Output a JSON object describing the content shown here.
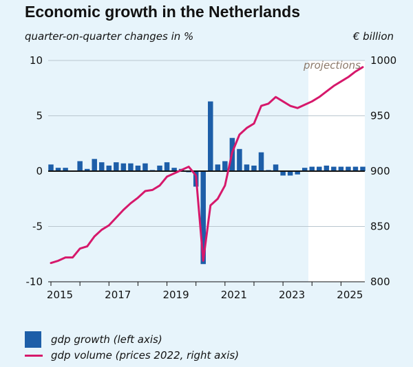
{
  "chart_data": {
    "type": "bar+line",
    "title": "Economic growth in the Netherlands",
    "left_axis_label": "quarter-on-quarter changes in %",
    "right_axis_label": "€ billion",
    "left_ylim": [
      -10,
      10
    ],
    "right_ylim": [
      800,
      1000
    ],
    "left_ticks": [
      "10",
      "5",
      "0",
      "-5",
      "-10"
    ],
    "right_ticks": [
      "1000",
      "950",
      "900",
      "850",
      "800"
    ],
    "x_ticks": [
      "2015",
      "2017",
      "2019",
      "2021",
      "2023",
      "2025"
    ],
    "projection_label": "projections",
    "projection_start": "2024Q1",
    "quarters": [
      "2015Q1",
      "2015Q2",
      "2015Q3",
      "2015Q4",
      "2016Q1",
      "2016Q2",
      "2016Q3",
      "2016Q4",
      "2017Q1",
      "2017Q2",
      "2017Q3",
      "2017Q4",
      "2018Q1",
      "2018Q2",
      "2018Q3",
      "2018Q4",
      "2019Q1",
      "2019Q2",
      "2019Q3",
      "2019Q4",
      "2020Q1",
      "2020Q2",
      "2020Q3",
      "2020Q4",
      "2021Q1",
      "2021Q2",
      "2021Q3",
      "2021Q4",
      "2022Q1",
      "2022Q2",
      "2022Q3",
      "2022Q4",
      "2023Q1",
      "2023Q2",
      "2023Q3",
      "2023Q4",
      "2024Q1",
      "2024Q2",
      "2024Q3",
      "2024Q4",
      "2025Q1",
      "2025Q2",
      "2025Q3",
      "2025Q4"
    ],
    "series": [
      {
        "name": "gdp growth (left axis)",
        "type": "bar",
        "color": "#1d5ea8",
        "values": [
          0.6,
          0.3,
          0.3,
          0.0,
          0.9,
          0.2,
          1.1,
          0.8,
          0.5,
          0.8,
          0.7,
          0.7,
          0.5,
          0.7,
          0.1,
          0.5,
          0.8,
          0.3,
          0.2,
          -0.1,
          -1.4,
          -8.4,
          6.3,
          0.6,
          0.9,
          3.0,
          2.0,
          0.6,
          0.5,
          1.7,
          0.1,
          0.6,
          -0.4,
          -0.4,
          -0.3,
          0.3,
          0.4,
          0.4,
          0.5,
          0.4,
          0.4,
          0.4,
          0.4,
          0.4
        ]
      },
      {
        "name": "gdp volume (prices 2022, right axis)",
        "type": "line",
        "color": "#d6186b",
        "values": [
          817,
          819,
          822,
          822,
          830,
          832,
          841,
          847,
          851,
          858,
          865,
          871,
          876,
          882,
          883,
          887,
          895,
          898,
          901,
          904,
          896,
          819,
          869,
          875,
          887,
          917,
          933,
          939,
          943,
          959,
          961,
          967,
          963,
          959,
          957,
          960,
          963,
          967,
          972,
          977,
          981,
          985,
          990,
          994
        ]
      }
    ],
    "grid": true
  },
  "legend": {
    "bar_label": "gdp growth (left axis)",
    "line_label": "gdp volume (prices 2022, right axis)"
  }
}
